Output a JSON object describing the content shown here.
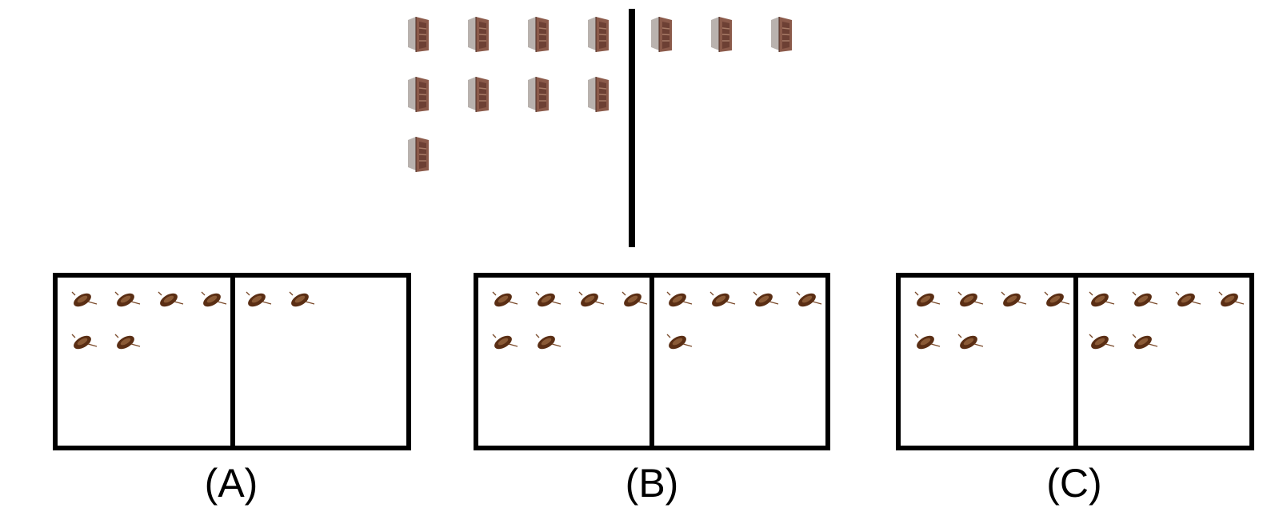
{
  "top": {
    "left_count": 9,
    "right_count": 3,
    "icon": "bookcase-icon"
  },
  "options": [
    {
      "label": "(A)",
      "left_count": 6,
      "right_count": 2
    },
    {
      "label": "(B)",
      "left_count": 6,
      "right_count": 5
    },
    {
      "label": "(C)",
      "left_count": 6,
      "right_count": 6
    }
  ],
  "option_icon": "boat-icon",
  "colors": {
    "bookcase_wood": "#8b5a4a",
    "bookcase_side": "#b9b2ae",
    "boat_hull": "#5a2e14",
    "outline": "#000000"
  }
}
